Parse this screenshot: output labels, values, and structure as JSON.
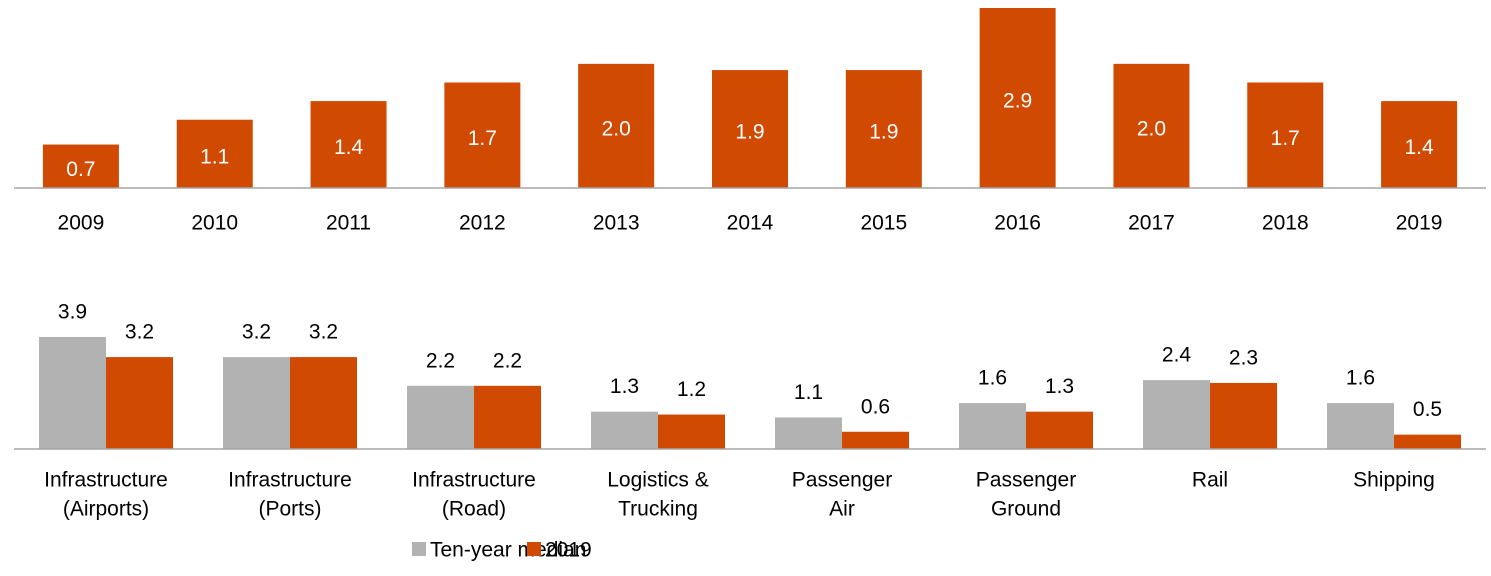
{
  "chart_data": [
    {
      "type": "bar",
      "categories": [
        "2009",
        "2010",
        "2011",
        "2012",
        "2013",
        "2014",
        "2015",
        "2016",
        "2017",
        "2018",
        "2019"
      ],
      "values": [
        0.7,
        1.1,
        1.4,
        1.7,
        2.0,
        1.9,
        1.9,
        2.9,
        2.0,
        1.7,
        1.4
      ],
      "value_labels": [
        "0.7",
        "1.1",
        "1.4",
        "1.7",
        "2.0",
        "1.9",
        "1.9",
        "2.9",
        "2.0",
        "1.7",
        "1.4"
      ],
      "color": "#d04a02",
      "ylim": [
        0,
        2.9
      ]
    },
    {
      "type": "grouped_bar",
      "categories": [
        [
          "Infrastructure",
          "(Airports)"
        ],
        [
          "Infrastructure",
          "(Ports)"
        ],
        [
          "Infrastructure",
          "(Road)"
        ],
        [
          "Logistics &",
          "Trucking"
        ],
        [
          "Passenger",
          "Air"
        ],
        [
          "Passenger",
          "Ground"
        ],
        [
          "Rail"
        ],
        [
          "Shipping"
        ]
      ],
      "series": [
        {
          "name": "Ten-year median",
          "color": "#b2b2b2",
          "values": [
            3.9,
            3.2,
            2.2,
            1.3,
            1.1,
            1.6,
            2.4,
            1.6
          ]
        },
        {
          "name": "2019",
          "color": "#d04a02",
          "values": [
            3.2,
            3.2,
            2.2,
            1.2,
            0.6,
            1.3,
            2.3,
            0.5
          ]
        }
      ],
      "ylim": [
        0,
        3.9
      ],
      "legend": "bottom"
    }
  ]
}
